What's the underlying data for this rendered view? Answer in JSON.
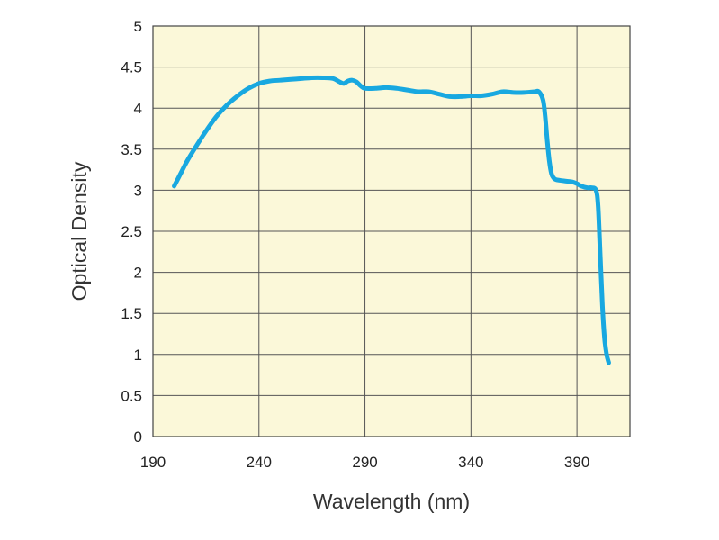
{
  "chart_data": {
    "type": "line",
    "xlabel": "Wavelength (nm)",
    "ylabel": "Optical Density",
    "xlim": [
      190,
      415
    ],
    "ylim": [
      0,
      5
    ],
    "xticks": [
      190,
      240,
      290,
      340,
      390
    ],
    "yticks": [
      0,
      0.5,
      1,
      1.5,
      2,
      2.5,
      3,
      3.5,
      4,
      4.5,
      5
    ],
    "ytick_labels": [
      "0",
      "0.5",
      "1",
      "1.5",
      "2",
      "2.5",
      "3",
      "3.5",
      "4",
      "4.5",
      "5"
    ],
    "grid": true,
    "series": [
      {
        "x": [
          200,
          203,
          206,
          210,
          215,
          220,
          225,
          230,
          235,
          240,
          245,
          250,
          255,
          260,
          265,
          270,
          275,
          278,
          280,
          282,
          284,
          286,
          288,
          290,
          295,
          300,
          305,
          310,
          315,
          320,
          325,
          330,
          335,
          340,
          345,
          350,
          355,
          360,
          365,
          370,
          372,
          374,
          375,
          376,
          377,
          378,
          379,
          380,
          382,
          385,
          388,
          390,
          392,
          395,
          397,
          399,
          400,
          401,
          402,
          403,
          404,
          405
        ],
        "y": [
          3.05,
          3.2,
          3.35,
          3.52,
          3.72,
          3.9,
          4.04,
          4.15,
          4.24,
          4.3,
          4.33,
          4.34,
          4.35,
          4.36,
          4.37,
          4.37,
          4.36,
          4.32,
          4.3,
          4.33,
          4.34,
          4.32,
          4.27,
          4.24,
          4.24,
          4.25,
          4.24,
          4.22,
          4.2,
          4.2,
          4.17,
          4.14,
          4.14,
          4.15,
          4.15,
          4.17,
          4.2,
          4.19,
          4.19,
          4.2,
          4.2,
          4.1,
          3.9,
          3.6,
          3.35,
          3.2,
          3.15,
          3.13,
          3.12,
          3.11,
          3.1,
          3.08,
          3.05,
          3.03,
          3.03,
          3.0,
          2.8,
          2.2,
          1.6,
          1.2,
          1.0,
          0.9
        ],
        "color": "#18a8e0"
      }
    ],
    "colors": {
      "plot_background": "#fbf8d9",
      "grid": "#555555",
      "line": "#18a8e0"
    }
  }
}
